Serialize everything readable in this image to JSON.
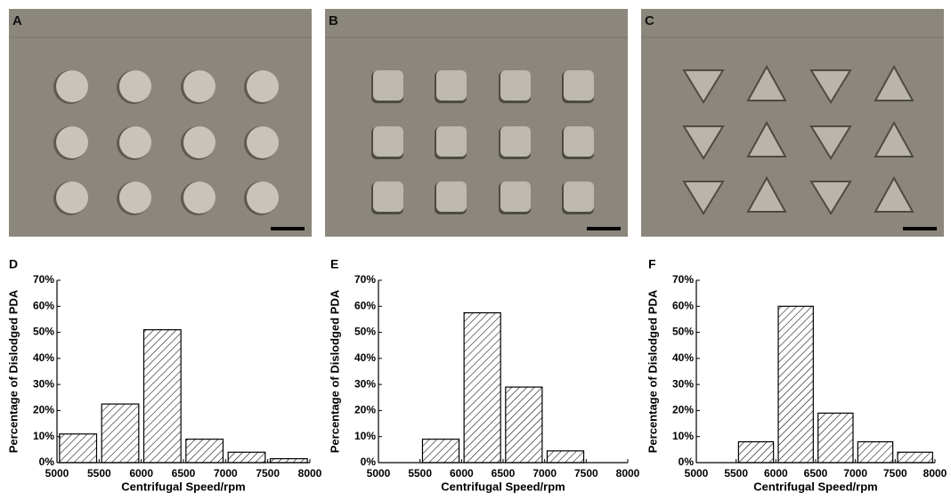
{
  "photo_panels": [
    {
      "label": "A"
    },
    {
      "label": "B"
    },
    {
      "label": "C"
    }
  ],
  "chart_data": [
    {
      "type": "histogram",
      "panel_label": "D",
      "x_label": "Centrifugal Speed/rpm",
      "y_label": "Percentage of Dislodged PDA",
      "bins": [
        5000,
        5500,
        6000,
        6500,
        7000,
        7500,
        8000
      ],
      "values": [
        11,
        22.5,
        51,
        9,
        4,
        1.5
      ],
      "xlim": [
        5000,
        8000
      ],
      "xticks": [
        5000,
        5500,
        6000,
        6500,
        7000,
        7500,
        8000
      ],
      "ylim": [
        0,
        70
      ],
      "yticks": [
        {
          "value": 0,
          "label": "0%"
        },
        {
          "value": 10,
          "label": "10%"
        },
        {
          "value": 20,
          "label": "20%"
        },
        {
          "value": 30,
          "label": "30%"
        },
        {
          "value": 40,
          "label": "40%"
        },
        {
          "value": 50,
          "label": "50%"
        },
        {
          "value": 60,
          "label": "60%"
        },
        {
          "value": 70,
          "label": "70%"
        }
      ],
      "color": "#000000",
      "hatch": true
    },
    {
      "type": "histogram",
      "panel_label": "E",
      "x_label": "Centrifugal Speed/rpm",
      "y_label": "Percentage of Dislodged PDA",
      "bins": [
        5000,
        5500,
        6000,
        6500,
        7000,
        7500,
        8000
      ],
      "values": [
        0,
        9,
        57.5,
        29,
        4.5,
        0
      ],
      "xlim": [
        5000,
        8000
      ],
      "xticks": [
        5000,
        5500,
        6000,
        6500,
        7000,
        7500,
        8000
      ],
      "ylim": [
        0,
        70
      ],
      "yticks": [
        {
          "value": 0,
          "label": "0%"
        },
        {
          "value": 10,
          "label": "10%"
        },
        {
          "value": 20,
          "label": "20%"
        },
        {
          "value": 30,
          "label": "30%"
        },
        {
          "value": 40,
          "label": "40%"
        },
        {
          "value": 50,
          "label": "50%"
        },
        {
          "value": 60,
          "label": "60%"
        },
        {
          "value": 70,
          "label": "70%"
        }
      ],
      "color": "#000000",
      "hatch": true
    },
    {
      "type": "histogram",
      "panel_label": "F",
      "x_label": "Centrifugal Speed/rpm",
      "y_label": "Percentage of Dislodged PDA",
      "bins": [
        5000,
        5500,
        6000,
        6500,
        7000,
        7500,
        8000
      ],
      "values": [
        0,
        8,
        60,
        19,
        8,
        4
      ],
      "xlim": [
        5000,
        8000
      ],
      "xticks": [
        5000,
        5500,
        6000,
        6500,
        7000,
        7500,
        8000
      ],
      "ylim": [
        0,
        70
      ],
      "yticks": [
        {
          "value": 0,
          "label": "0%"
        },
        {
          "value": 10,
          "label": "10%"
        },
        {
          "value": 20,
          "label": "20%"
        },
        {
          "value": 30,
          "label": "30%"
        },
        {
          "value": 40,
          "label": "40%"
        },
        {
          "value": 50,
          "label": "50%"
        },
        {
          "value": 60,
          "label": "60%"
        },
        {
          "value": 70,
          "label": "70%"
        }
      ],
      "color": "#000000",
      "hatch": true
    }
  ]
}
